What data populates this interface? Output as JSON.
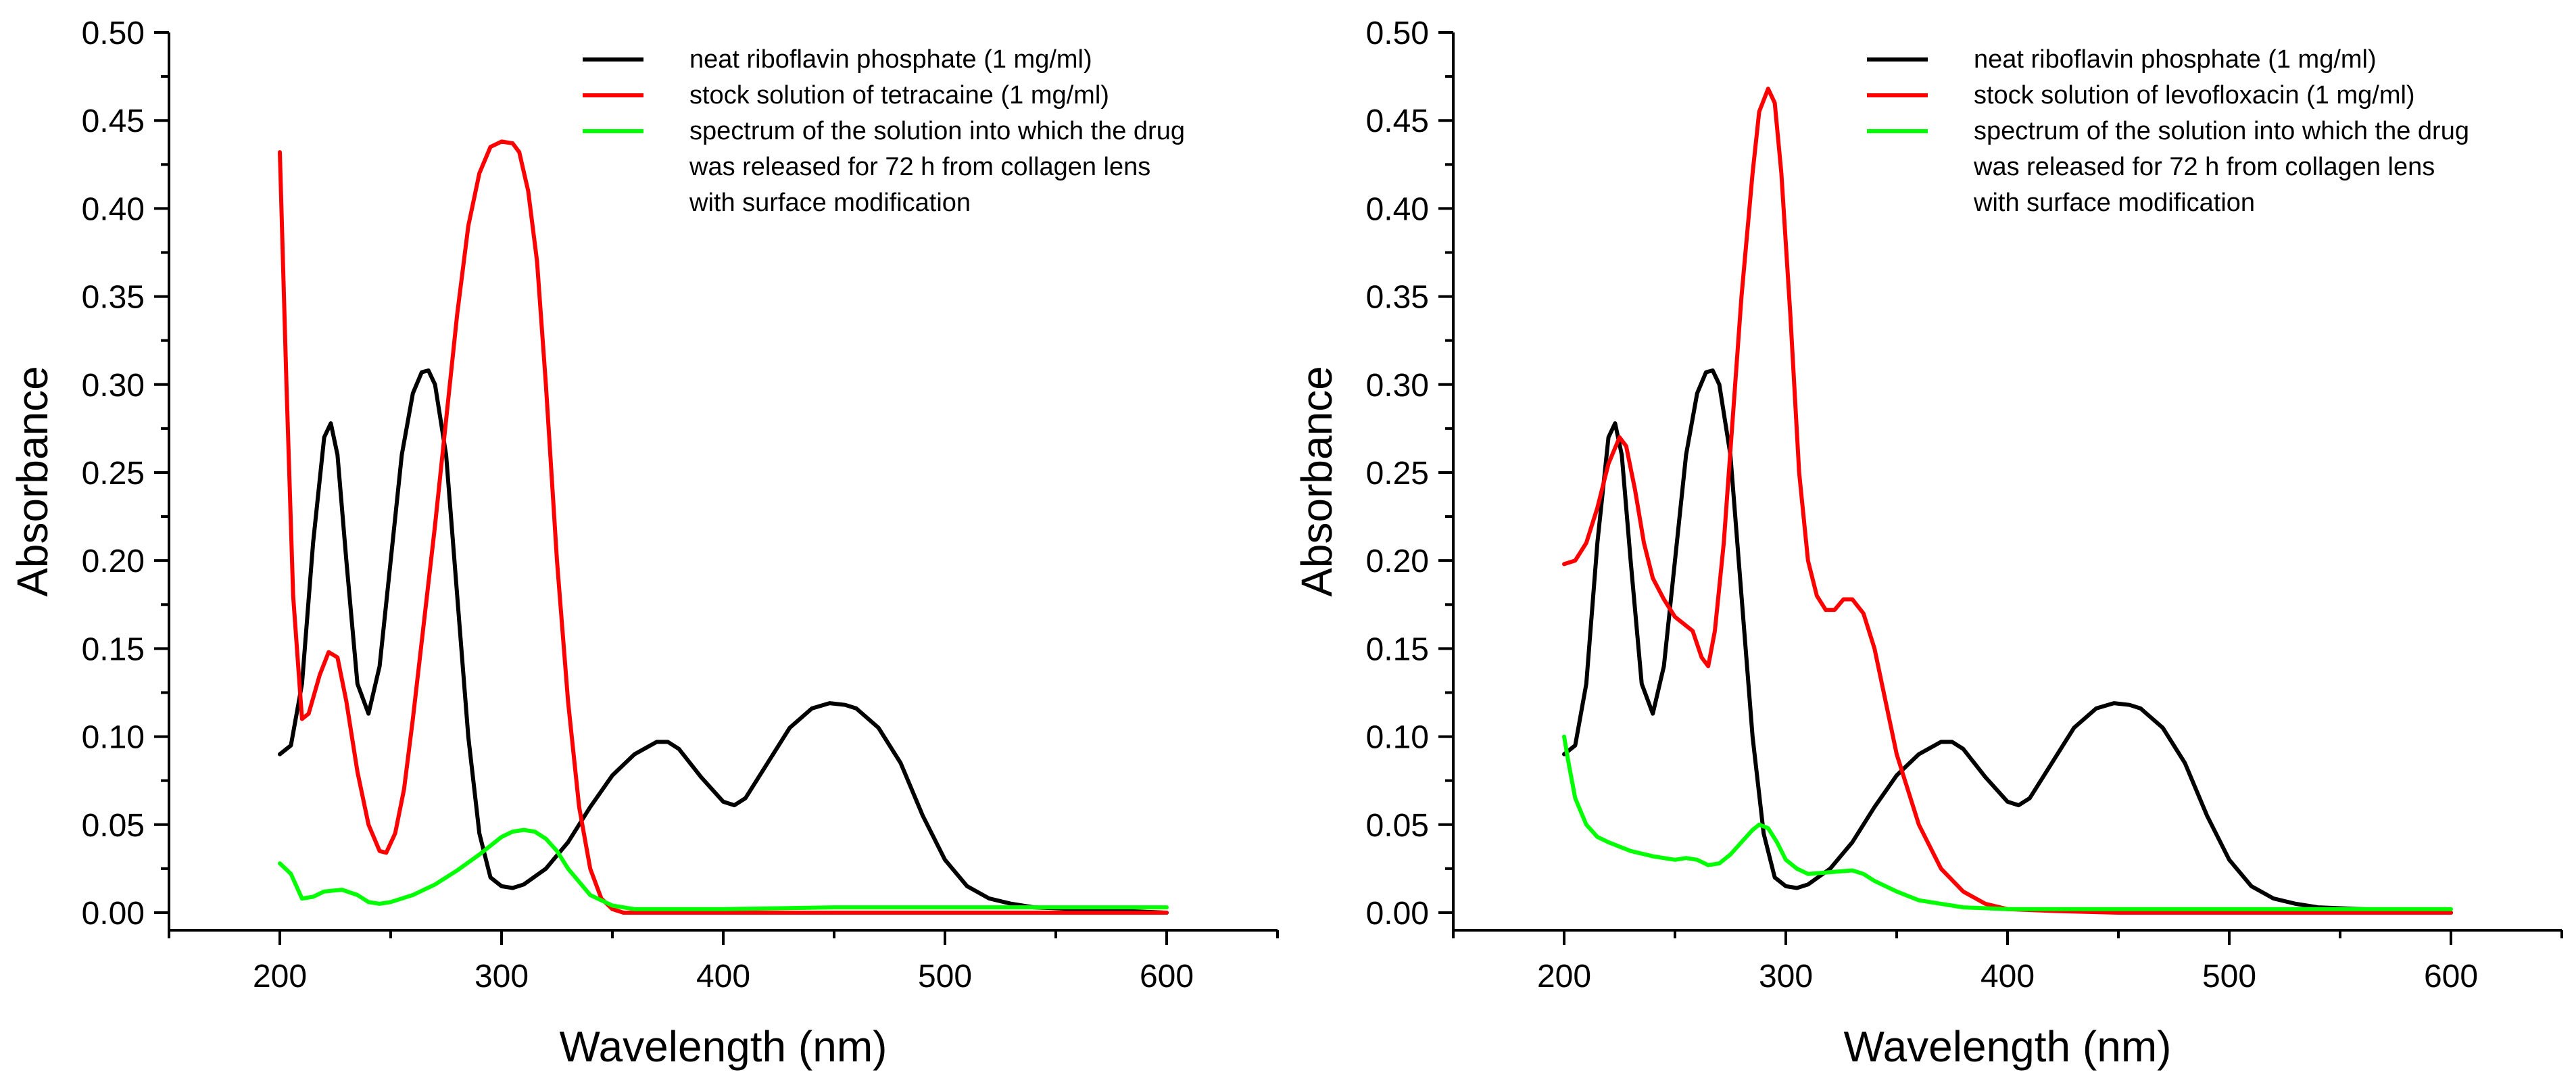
{
  "chart_data": [
    {
      "type": "line",
      "xlabel": "Wavelength (nm)",
      "ylabel": "Absorbance",
      "xlim": [
        150,
        650
      ],
      "ylim": [
        -0.01,
        0.5
      ],
      "xticks": [
        200,
        300,
        400,
        500,
        600
      ],
      "yticks": [
        0.0,
        0.05,
        0.1,
        0.15,
        0.2,
        0.25,
        0.3,
        0.35,
        0.4,
        0.45,
        0.5
      ],
      "xtick_labels": [
        "200",
        "300",
        "400",
        "500",
        "600"
      ],
      "ytick_labels": [
        "0.00",
        "0.05",
        "0.10",
        "0.15",
        "0.20",
        "0.25",
        "0.30",
        "0.35",
        "0.40",
        "0.45",
        "0.50"
      ],
      "grid": false,
      "legend_position": "top-right",
      "series": [
        {
          "name": "neat riboflavin phosphate (1 mg/ml)",
          "legend_lines": [
            "neat riboflavin phosphate (1 mg/ml)"
          ],
          "color": "#000000",
          "x": [
            200,
            205,
            210,
            215,
            220,
            223,
            226,
            230,
            235,
            240,
            245,
            250,
            255,
            260,
            264,
            267,
            270,
            275,
            280,
            285,
            290,
            295,
            300,
            305,
            310,
            320,
            330,
            340,
            350,
            360,
            370,
            375,
            380,
            390,
            400,
            405,
            410,
            420,
            430,
            440,
            448,
            455,
            460,
            470,
            480,
            490,
            500,
            510,
            520,
            530,
            540,
            560,
            580,
            600
          ],
          "y": [
            0.09,
            0.095,
            0.13,
            0.21,
            0.27,
            0.278,
            0.26,
            0.2,
            0.13,
            0.113,
            0.14,
            0.2,
            0.26,
            0.295,
            0.307,
            0.308,
            0.3,
            0.26,
            0.18,
            0.1,
            0.045,
            0.02,
            0.015,
            0.014,
            0.016,
            0.025,
            0.04,
            0.06,
            0.078,
            0.09,
            0.097,
            0.097,
            0.093,
            0.077,
            0.063,
            0.061,
            0.065,
            0.085,
            0.105,
            0.116,
            0.119,
            0.118,
            0.116,
            0.105,
            0.085,
            0.055,
            0.03,
            0.015,
            0.008,
            0.005,
            0.003,
            0.002,
            0.001,
            0.0
          ]
        },
        {
          "name": "stock solution of tetracaine (1 mg/ml)",
          "legend_lines": [
            "stock solution of tetracaine (1 mg/ml)"
          ],
          "color": "#ff0000",
          "x": [
            200,
            203,
            206,
            210,
            213,
            218,
            222,
            226,
            230,
            235,
            240,
            245,
            248,
            252,
            256,
            260,
            265,
            270,
            275,
            280,
            285,
            290,
            295,
            300,
            305,
            308,
            312,
            316,
            320,
            325,
            330,
            335,
            340,
            345,
            350,
            355,
            360,
            380,
            400,
            450,
            500,
            550,
            600
          ],
          "y": [
            0.432,
            0.3,
            0.18,
            0.11,
            0.113,
            0.135,
            0.148,
            0.145,
            0.12,
            0.08,
            0.05,
            0.035,
            0.034,
            0.045,
            0.07,
            0.11,
            0.165,
            0.22,
            0.28,
            0.34,
            0.39,
            0.42,
            0.435,
            0.438,
            0.437,
            0.432,
            0.41,
            0.37,
            0.3,
            0.2,
            0.12,
            0.06,
            0.025,
            0.008,
            0.002,
            0.0,
            0.0,
            0.0,
            0.0,
            0.0,
            0.0,
            0.0,
            0.0
          ]
        },
        {
          "name": "spectrum of the solution into which the drug was released for 72 h from collagen lens with surface modification",
          "legend_lines": [
            "spectrum of the solution into which the drug",
            "was released for 72 h from collagen lens",
            "with surface modification"
          ],
          "color": "#00ff00",
          "x": [
            200,
            205,
            210,
            215,
            220,
            228,
            235,
            240,
            245,
            250,
            260,
            270,
            280,
            290,
            300,
            305,
            310,
            315,
            320,
            325,
            330,
            340,
            350,
            360,
            400,
            450,
            500,
            550,
            600
          ],
          "y": [
            0.028,
            0.022,
            0.008,
            0.009,
            0.012,
            0.013,
            0.01,
            0.006,
            0.005,
            0.006,
            0.01,
            0.016,
            0.024,
            0.033,
            0.043,
            0.046,
            0.047,
            0.046,
            0.042,
            0.035,
            0.025,
            0.01,
            0.004,
            0.002,
            0.002,
            0.003,
            0.003,
            0.003,
            0.003
          ]
        }
      ]
    },
    {
      "type": "line",
      "xlabel": "Wavelength (nm)",
      "ylabel": "Absorbance",
      "xlim": [
        150,
        650
      ],
      "ylim": [
        -0.01,
        0.5
      ],
      "xticks": [
        200,
        300,
        400,
        500,
        600
      ],
      "yticks": [
        0.0,
        0.05,
        0.1,
        0.15,
        0.2,
        0.25,
        0.3,
        0.35,
        0.4,
        0.45,
        0.5
      ],
      "xtick_labels": [
        "200",
        "300",
        "400",
        "500",
        "600"
      ],
      "ytick_labels": [
        "0.00",
        "0.05",
        "0.10",
        "0.15",
        "0.20",
        "0.25",
        "0.30",
        "0.35",
        "0.40",
        "0.45",
        "0.50"
      ],
      "grid": false,
      "legend_position": "top-right",
      "series": [
        {
          "name": "neat riboflavin phosphate (1 mg/ml)",
          "legend_lines": [
            "neat riboflavin phosphate (1 mg/ml)"
          ],
          "color": "#000000",
          "x": [
            200,
            205,
            210,
            215,
            220,
            223,
            226,
            230,
            235,
            240,
            245,
            250,
            255,
            260,
            264,
            267,
            270,
            275,
            280,
            285,
            290,
            295,
            300,
            305,
            310,
            320,
            330,
            340,
            350,
            360,
            370,
            375,
            380,
            390,
            400,
            405,
            410,
            420,
            430,
            440,
            448,
            455,
            460,
            470,
            480,
            490,
            500,
            510,
            520,
            530,
            540,
            560,
            580,
            600
          ],
          "y": [
            0.09,
            0.095,
            0.13,
            0.21,
            0.27,
            0.278,
            0.26,
            0.2,
            0.13,
            0.113,
            0.14,
            0.2,
            0.26,
            0.295,
            0.307,
            0.308,
            0.3,
            0.26,
            0.18,
            0.1,
            0.045,
            0.02,
            0.015,
            0.014,
            0.016,
            0.025,
            0.04,
            0.06,
            0.078,
            0.09,
            0.097,
            0.097,
            0.093,
            0.077,
            0.063,
            0.061,
            0.065,
            0.085,
            0.105,
            0.116,
            0.119,
            0.118,
            0.116,
            0.105,
            0.085,
            0.055,
            0.03,
            0.015,
            0.008,
            0.005,
            0.003,
            0.002,
            0.001,
            0.0
          ]
        },
        {
          "name": "stock solution of levofloxacin (1 mg/ml)",
          "legend_lines": [
            "stock solution of levofloxacin (1 mg/ml)"
          ],
          "color": "#ff0000",
          "x": [
            200,
            205,
            210,
            215,
            220,
            225,
            228,
            232,
            236,
            240,
            245,
            250,
            255,
            258,
            262,
            265,
            268,
            272,
            276,
            280,
            285,
            288,
            292,
            295,
            298,
            302,
            306,
            310,
            314,
            318,
            322,
            326,
            330,
            335,
            340,
            345,
            350,
            360,
            370,
            380,
            390,
            400,
            420,
            450,
            500,
            550,
            600
          ],
          "y": [
            0.198,
            0.2,
            0.21,
            0.23,
            0.255,
            0.27,
            0.265,
            0.24,
            0.21,
            0.19,
            0.178,
            0.168,
            0.163,
            0.16,
            0.145,
            0.14,
            0.16,
            0.21,
            0.28,
            0.35,
            0.42,
            0.455,
            0.468,
            0.46,
            0.42,
            0.34,
            0.25,
            0.2,
            0.18,
            0.172,
            0.172,
            0.178,
            0.178,
            0.17,
            0.15,
            0.12,
            0.09,
            0.05,
            0.025,
            0.012,
            0.005,
            0.002,
            0.001,
            0.0,
            0.0,
            0.0,
            0.0
          ]
        },
        {
          "name": "spectrum of the solution into which the drug was released for 72 h from collagen lens with surface modification",
          "legend_lines": [
            "spectrum of the solution into which the drug",
            "was released for 72 h from collagen lens",
            "with surface modification"
          ],
          "color": "#00ff00",
          "x": [
            200,
            202,
            205,
            210,
            215,
            220,
            230,
            240,
            250,
            255,
            260,
            265,
            270,
            275,
            280,
            285,
            288,
            292,
            296,
            300,
            305,
            310,
            320,
            330,
            335,
            340,
            350,
            360,
            380,
            400,
            450,
            500,
            550,
            600
          ],
          "y": [
            0.1,
            0.085,
            0.065,
            0.05,
            0.043,
            0.04,
            0.035,
            0.032,
            0.03,
            0.031,
            0.03,
            0.027,
            0.028,
            0.033,
            0.04,
            0.047,
            0.05,
            0.048,
            0.04,
            0.03,
            0.025,
            0.022,
            0.023,
            0.024,
            0.022,
            0.018,
            0.012,
            0.007,
            0.003,
            0.002,
            0.002,
            0.002,
            0.002,
            0.002
          ]
        }
      ]
    }
  ]
}
